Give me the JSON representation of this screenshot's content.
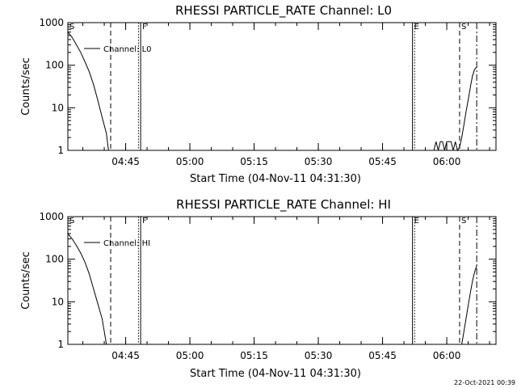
{
  "timestamp": "22-Oct-2021 00:39",
  "chart_data": [
    {
      "type": "line",
      "title": "RHESSI PARTICLE_RATE Channel: L0",
      "xlabel": "Start Time (04-Nov-11 04:31:30)",
      "ylabel": "Counts/sec",
      "y_scale": "log",
      "ylim": [
        1,
        1000
      ],
      "y_ticks": [
        {
          "value": 1,
          "label": "1"
        },
        {
          "value": 10,
          "label": "10"
        },
        {
          "value": 100,
          "label": "100"
        },
        {
          "value": 1000,
          "label": "1000"
        }
      ],
      "xlim": [
        "04:31:30",
        "06:11:30"
      ],
      "x_ticks": [
        {
          "value": "04:45",
          "label": "04:45"
        },
        {
          "value": "05:00",
          "label": "05:00"
        },
        {
          "value": "05:15",
          "label": "05:15"
        },
        {
          "value": "05:30",
          "label": "05:30"
        },
        {
          "value": "05:45",
          "label": "05:45"
        },
        {
          "value": "06:00",
          "label": "06:00"
        }
      ],
      "legend": "top-left",
      "markers": [
        {
          "time": "04:31:30",
          "label": "S"
        },
        {
          "time": "04:48:30",
          "label": "F"
        },
        {
          "time": "05:52:00",
          "label": "E"
        },
        {
          "time": "06:03:00",
          "label": "S"
        }
      ],
      "vlines": [
        {
          "time": "04:41:30",
          "style": "dashed"
        },
        {
          "time": "04:48:00",
          "style": "dotted"
        },
        {
          "time": "04:48:30",
          "style": "solid"
        },
        {
          "time": "05:52:00",
          "style": "solid"
        },
        {
          "time": "05:52:30",
          "style": "dotted"
        },
        {
          "time": "06:03:00",
          "style": "dashed"
        },
        {
          "time": "06:07:00",
          "style": "dashdot"
        }
      ],
      "series": [
        {
          "name": "Channel: L0",
          "segments": [
            [
              [
                "04:31:30",
                600
              ],
              [
                "04:32:30",
                450
              ],
              [
                "04:33:30",
                300
              ],
              [
                "04:34:30",
                200
              ],
              [
                "04:35:30",
                120
              ],
              [
                "04:36:30",
                70
              ],
              [
                "04:37:30",
                35
              ],
              [
                "04:38:30",
                15
              ],
              [
                "04:39:30",
                6
              ],
              [
                "04:40:30",
                2.5
              ],
              [
                "04:41:00",
                1
              ]
            ],
            [
              [
                "05:57:00",
                1
              ],
              [
                "05:57:30",
                1.6
              ],
              [
                "05:58:00",
                1
              ],
              [
                "05:58:30",
                1.6
              ],
              [
                "05:59:00",
                1.6
              ],
              [
                "05:59:30",
                1
              ],
              [
                "06:00:00",
                1.6
              ],
              [
                "06:00:30",
                1.6
              ],
              [
                "06:01:00",
                1.6
              ],
              [
                "06:01:30",
                1
              ],
              [
                "06:02:00",
                1.6
              ],
              [
                "06:02:30",
                1
              ],
              [
                "06:03:00",
                1.2
              ],
              [
                "06:03:30",
                2
              ],
              [
                "06:04:00",
                4
              ],
              [
                "06:04:30",
                8
              ],
              [
                "06:05:00",
                15
              ],
              [
                "06:05:30",
                30
              ],
              [
                "06:06:00",
                55
              ],
              [
                "06:06:30",
                80
              ],
              [
                "06:07:00",
                90
              ]
            ]
          ]
        }
      ]
    },
    {
      "type": "line",
      "title": "RHESSI PARTICLE_RATE Channel: HI",
      "xlabel": "Start Time (04-Nov-11 04:31:30)",
      "ylabel": "Counts/sec",
      "y_scale": "log",
      "ylim": [
        1,
        1000
      ],
      "y_ticks": [
        {
          "value": 1,
          "label": "1"
        },
        {
          "value": 10,
          "label": "10"
        },
        {
          "value": 100,
          "label": "100"
        },
        {
          "value": 1000,
          "label": "1000"
        }
      ],
      "xlim": [
        "04:31:30",
        "06:11:30"
      ],
      "x_ticks": [
        {
          "value": "04:45",
          "label": "04:45"
        },
        {
          "value": "05:00",
          "label": "05:00"
        },
        {
          "value": "05:15",
          "label": "05:15"
        },
        {
          "value": "05:30",
          "label": "05:30"
        },
        {
          "value": "05:45",
          "label": "05:45"
        },
        {
          "value": "06:00",
          "label": "06:00"
        }
      ],
      "legend": "top-left",
      "markers": [
        {
          "time": "04:31:30",
          "label": "S"
        },
        {
          "time": "04:48:30",
          "label": "F"
        },
        {
          "time": "05:52:00",
          "label": "E"
        },
        {
          "time": "06:03:00",
          "label": "S"
        }
      ],
      "vlines": [
        {
          "time": "04:41:30",
          "style": "dashed"
        },
        {
          "time": "04:48:00",
          "style": "dotted"
        },
        {
          "time": "04:48:30",
          "style": "solid"
        },
        {
          "time": "05:52:00",
          "style": "solid"
        },
        {
          "time": "05:52:30",
          "style": "dotted"
        },
        {
          "time": "06:03:00",
          "style": "dashed"
        },
        {
          "time": "06:07:00",
          "style": "dashdot"
        }
      ],
      "series": [
        {
          "name": "Channel: HI",
          "segments": [
            [
              [
                "04:31:30",
                400
              ],
              [
                "04:32:30",
                300
              ],
              [
                "04:33:30",
                210
              ],
              [
                "04:34:30",
                140
              ],
              [
                "04:35:30",
                85
              ],
              [
                "04:36:30",
                45
              ],
              [
                "04:37:30",
                20
              ],
              [
                "04:38:30",
                9
              ],
              [
                "04:39:30",
                4
              ],
              [
                "04:40:00",
                2
              ],
              [
                "04:40:30",
                1
              ]
            ],
            [
              [
                "06:03:30",
                1
              ],
              [
                "06:04:00",
                2
              ],
              [
                "06:04:30",
                4
              ],
              [
                "06:05:00",
                8
              ],
              [
                "06:05:30",
                16
              ],
              [
                "06:06:00",
                30
              ],
              [
                "06:06:30",
                50
              ],
              [
                "06:07:00",
                70
              ]
            ]
          ]
        }
      ]
    }
  ]
}
